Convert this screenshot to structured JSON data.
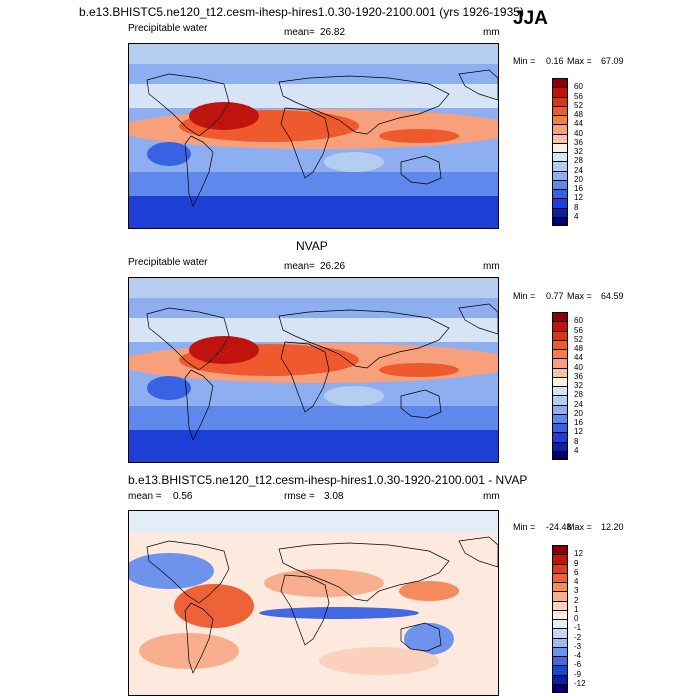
{
  "season": "JJA",
  "top_title": "b.e13.BHISTC5.ne120_t12.cesm-ihesp-hires1.0.30-1920-2100.001 (yrs 1926-1935)",
  "panels": [
    {
      "id": "model",
      "title": "",
      "var_label": "Precipitable water",
      "mean_label": "mean=",
      "mean_value": "26.82",
      "units": "mm",
      "min_label": "Min =",
      "min_value": "0.16",
      "max_label": "Max =",
      "max_value": "67.09",
      "levels": [
        "60",
        "56",
        "52",
        "48",
        "44",
        "40",
        "36",
        "32",
        "28",
        "24",
        "20",
        "16",
        "12",
        "8",
        "4"
      ],
      "colors": [
        "#8b0000",
        "#c1130d",
        "#d93518",
        "#ee5a2d",
        "#f47d4e",
        "#f8a07c",
        "#f9c3a8",
        "#fdeee0",
        "#d6e4f6",
        "#b5cdee",
        "#8daef0",
        "#5f88ec",
        "#3662e3",
        "#1c3fd6",
        "#0b1fa8",
        "#000072"
      ]
    },
    {
      "id": "obs",
      "title": "NVAP",
      "var_label": "Precipitable water",
      "mean_label": "mean=",
      "mean_value": "26.26",
      "units": "mm",
      "min_label": "Min =",
      "min_value": "0.77",
      "max_label": "Max =",
      "max_value": "64.59",
      "levels": [
        "60",
        "56",
        "52",
        "48",
        "44",
        "40",
        "36",
        "32",
        "28",
        "24",
        "20",
        "16",
        "12",
        "8",
        "4"
      ],
      "colors": [
        "#8b0000",
        "#c1130d",
        "#d93518",
        "#ee5a2d",
        "#f47d4e",
        "#f8a07c",
        "#f9c3a8",
        "#fdeee0",
        "#d6e4f6",
        "#b5cdee",
        "#8daef0",
        "#5f88ec",
        "#3662e3",
        "#1c3fd6",
        "#0b1fa8",
        "#000072"
      ]
    },
    {
      "id": "diff",
      "title": "b.e13.BHISTC5.ne120_t12.cesm-ihesp-hires1.0.30-1920-2100.001 - NVAP",
      "mean_label": "mean =",
      "mean_value": "0.56",
      "rmse_label": "rmse =",
      "rmse_value": "3.08",
      "units": "mm",
      "min_label": "Min =",
      "min_value": "-24.48",
      "max_label": "Max =",
      "max_value": "12.20",
      "levels": [
        "12",
        "9",
        "6",
        "4",
        "3",
        "2",
        "1",
        "0",
        "-1",
        "-2",
        "-3",
        "-4",
        "-6",
        "-9",
        "-12"
      ],
      "colors": [
        "#8b0000",
        "#c1130d",
        "#dd3a1c",
        "#ee6237",
        "#f58a5f",
        "#f8ad8d",
        "#fbd0bc",
        "#fde9de",
        "#e3edf8",
        "#c3d6f2",
        "#9bbaf0",
        "#6e93ec",
        "#4268e2",
        "#1f44d4",
        "#0a1fa6",
        "#000072"
      ]
    }
  ],
  "chart_data": [
    {
      "type": "heatmap",
      "title": "b.e13.BHISTC5.ne120_t12.cesm-ihesp-hires1.0.30-1920-2100.001 (yrs 1926-1935)",
      "subtitle": "Precipitable water",
      "units": "mm",
      "mean": 26.82,
      "min": 0.16,
      "max": 67.09,
      "contour_levels": [
        4,
        8,
        12,
        16,
        20,
        24,
        28,
        32,
        36,
        40,
        44,
        48,
        52,
        56,
        60
      ]
    },
    {
      "type": "heatmap",
      "title": "NVAP",
      "subtitle": "Precipitable water",
      "units": "mm",
      "mean": 26.26,
      "min": 0.77,
      "max": 64.59,
      "contour_levels": [
        4,
        8,
        12,
        16,
        20,
        24,
        28,
        32,
        36,
        40,
        44,
        48,
        52,
        56,
        60
      ]
    },
    {
      "type": "heatmap",
      "title": "b.e13.BHISTC5.ne120_t12.cesm-ihesp-hires1.0.30-1920-2100.001 - NVAP",
      "units": "mm",
      "mean": 0.56,
      "rmse": 3.08,
      "min": -24.48,
      "max": 12.2,
      "contour_levels": [
        -12,
        -9,
        -6,
        -4,
        -3,
        -2,
        -1,
        0,
        1,
        2,
        3,
        4,
        6,
        9,
        12
      ]
    }
  ]
}
